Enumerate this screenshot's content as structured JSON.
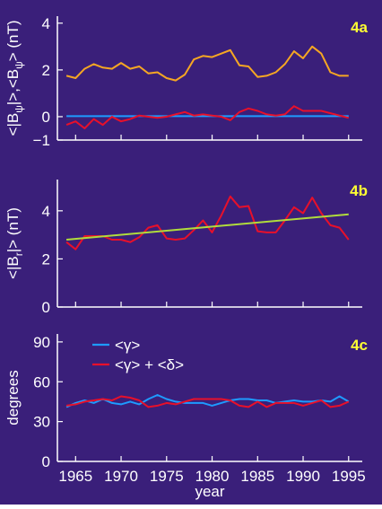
{
  "colors": {
    "background": "#3a1f7a",
    "axis": "#ffffff",
    "label": "#ffffff",
    "panel_tag": "#ffff33",
    "orange": "#f5a623",
    "red": "#e8102a",
    "blue": "#1e9bff",
    "green": "#b0dc3c"
  },
  "chart_data": [
    {
      "type": "line",
      "panel_label": "4a",
      "ylabel_main": "<|B",
      "ylabel_sub1": "ψ",
      "ylabel_mid": "|>,<B",
      "ylabel_sub2": "ψ",
      "ylabel_end": "> (nT)",
      "xlim": [
        1963,
        1996.5
      ],
      "ylim": [
        -1,
        4.3
      ],
      "yticks": [
        -1,
        0,
        2,
        4
      ],
      "x": [
        1964,
        1965,
        1966,
        1967,
        1968,
        1969,
        1970,
        1971,
        1972,
        1973,
        1974,
        1975,
        1976,
        1977,
        1978,
        1979,
        1980,
        1981,
        1982,
        1983,
        1984,
        1985,
        1986,
        1987,
        1988,
        1989,
        1990,
        1991,
        1992,
        1993,
        1994,
        1995
      ],
      "series": [
        {
          "key": "abs",
          "color": "#f5a623",
          "values": [
            1.75,
            1.65,
            2.05,
            2.25,
            2.1,
            2.05,
            2.3,
            2.05,
            2.15,
            1.85,
            1.9,
            1.65,
            1.55,
            1.8,
            2.45,
            2.6,
            2.55,
            2.7,
            2.85,
            2.2,
            2.15,
            1.7,
            1.75,
            1.9,
            2.25,
            2.8,
            2.5,
            3.0,
            2.7,
            1.9,
            1.75,
            1.75
          ]
        },
        {
          "key": "mean",
          "color": "#1e9bff",
          "values": [
            0.02,
            0.02,
            0.02,
            0.02,
            0.02,
            0.02,
            0.02,
            0.02,
            0.02,
            0.02,
            0.02,
            0.02,
            0.02,
            0.02,
            0.02,
            0.02,
            0.02,
            0.02,
            0.02,
            0.02,
            0.02,
            0.02,
            0.02,
            0.02,
            0.02,
            0.02,
            0.02,
            0.02,
            0.02,
            0.02,
            0.02,
            0.02
          ]
        },
        {
          "key": "signed",
          "color": "#e8102a",
          "values": [
            -0.35,
            -0.2,
            -0.5,
            -0.1,
            -0.35,
            0.0,
            -0.2,
            -0.1,
            0.05,
            0.0,
            -0.05,
            0.0,
            0.1,
            0.2,
            0.05,
            0.1,
            0.05,
            0.0,
            -0.15,
            0.2,
            0.35,
            0.25,
            0.1,
            0.05,
            0.1,
            0.45,
            0.25,
            0.25,
            0.25,
            0.15,
            0.05,
            -0.05
          ]
        }
      ]
    },
    {
      "type": "line",
      "panel_label": "4b",
      "ylabel_main": "<|B",
      "ylabel_sub1": "r",
      "ylabel_end": "|> (nT)",
      "xlim": [
        1963,
        1996.5
      ],
      "ylim": [
        0,
        5.3
      ],
      "yticks": [
        0,
        2,
        4
      ],
      "x": [
        1964,
        1965,
        1966,
        1967,
        1968,
        1969,
        1970,
        1971,
        1972,
        1973,
        1974,
        1975,
        1976,
        1977,
        1978,
        1979,
        1980,
        1981,
        1982,
        1983,
        1984,
        1985,
        1986,
        1987,
        1988,
        1989,
        1990,
        1991,
        1992,
        1993,
        1994,
        1995
      ],
      "series": [
        {
          "key": "data",
          "color": "#e8102a",
          "values": [
            2.7,
            2.4,
            2.95,
            2.95,
            2.95,
            2.8,
            2.8,
            2.7,
            2.9,
            3.3,
            3.4,
            2.85,
            2.8,
            2.85,
            3.2,
            3.6,
            3.1,
            3.8,
            4.6,
            4.15,
            4.2,
            3.15,
            3.1,
            3.1,
            3.6,
            4.15,
            3.9,
            4.55,
            3.9,
            3.4,
            3.3,
            2.8
          ]
        },
        {
          "key": "trend",
          "color": "#b0dc3c",
          "x": [
            1964,
            1995
          ],
          "values": [
            2.8,
            3.85
          ]
        }
      ]
    },
    {
      "type": "line",
      "panel_label": "4c",
      "ylabel_main": "degrees",
      "xlabel": "year",
      "xlim": [
        1963,
        1996.5
      ],
      "ylim": [
        0,
        96
      ],
      "yticks": [
        0,
        30,
        60,
        90
      ],
      "xticks": [
        1965,
        1970,
        1975,
        1980,
        1985,
        1990,
        1995
      ],
      "legend": [
        {
          "label": "<γ>",
          "color": "#1e9bff"
        },
        {
          "label": "<γ> + <δ>",
          "color": "#e8102a"
        }
      ],
      "x": [
        1964,
        1965,
        1966,
        1967,
        1968,
        1969,
        1970,
        1971,
        1972,
        1973,
        1974,
        1975,
        1976,
        1977,
        1978,
        1979,
        1980,
        1981,
        1982,
        1983,
        1984,
        1985,
        1986,
        1987,
        1988,
        1989,
        1990,
        1991,
        1992,
        1993,
        1994,
        1995
      ],
      "series": [
        {
          "key": "gamma",
          "color": "#1e9bff",
          "values": [
            41,
            44,
            46,
            44,
            47,
            44,
            43,
            45,
            43,
            47,
            50,
            47,
            45,
            44,
            44,
            44,
            42,
            44,
            46,
            47,
            47,
            46,
            46,
            44,
            45,
            46,
            45,
            45,
            46,
            45,
            49,
            45
          ]
        },
        {
          "key": "gamma_delta",
          "color": "#e8102a",
          "values": [
            42,
            43,
            45,
            46,
            47,
            46,
            49,
            48,
            46,
            41,
            42,
            44,
            43,
            45,
            47,
            47,
            47,
            47,
            46,
            42,
            41,
            45,
            41,
            44,
            44,
            44,
            42,
            44,
            46,
            41,
            42,
            45
          ]
        }
      ]
    }
  ]
}
